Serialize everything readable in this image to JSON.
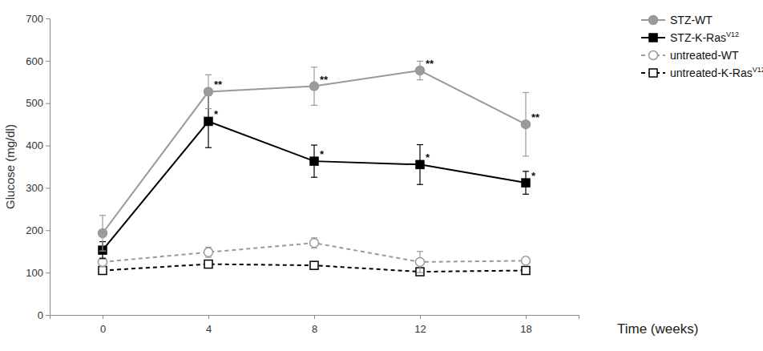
{
  "chart_data": {
    "type": "line",
    "x_label": "Time (weeks)",
    "y_label": "Glucose (mg/dl)",
    "categories": [
      "0",
      "4",
      "8",
      "12",
      "18"
    ],
    "ylim": [
      0,
      700
    ],
    "yticks": [
      0,
      100,
      200,
      300,
      400,
      500,
      600,
      700
    ],
    "grid": false,
    "legend": "top-right",
    "series": [
      {
        "name": "STZ-WT",
        "color": "#9a9a9a",
        "marker": "circle",
        "line_style": "solid",
        "values": [
          193,
          527,
          540,
          577,
          450
        ],
        "errors": [
          42,
          40,
          45,
          22,
          75
        ],
        "significance": [
          null,
          "**",
          "**",
          "**",
          "**"
        ]
      },
      {
        "name": "STZ-K-RasV12",
        "color": "#000000",
        "marker": "square",
        "line_style": "solid",
        "values": [
          153,
          457,
          363,
          355,
          312
        ],
        "errors": [
          20,
          62,
          38,
          47,
          27
        ],
        "significance": [
          null,
          "*",
          "*",
          "*",
          "*"
        ]
      },
      {
        "name": "untreated-WT",
        "color": "#9a9a9a",
        "marker": "circle-open",
        "line_style": "dashed",
        "values": [
          125,
          148,
          170,
          125,
          128
        ],
        "errors": [
          10,
          12,
          12,
          25,
          8
        ]
      },
      {
        "name": "untreated-K-RasV12",
        "color": "#000000",
        "marker": "square-open",
        "line_style": "dashed",
        "values": [
          105,
          120,
          117,
          102,
          105
        ],
        "errors": [
          5,
          6,
          6,
          5,
          5
        ]
      }
    ]
  }
}
